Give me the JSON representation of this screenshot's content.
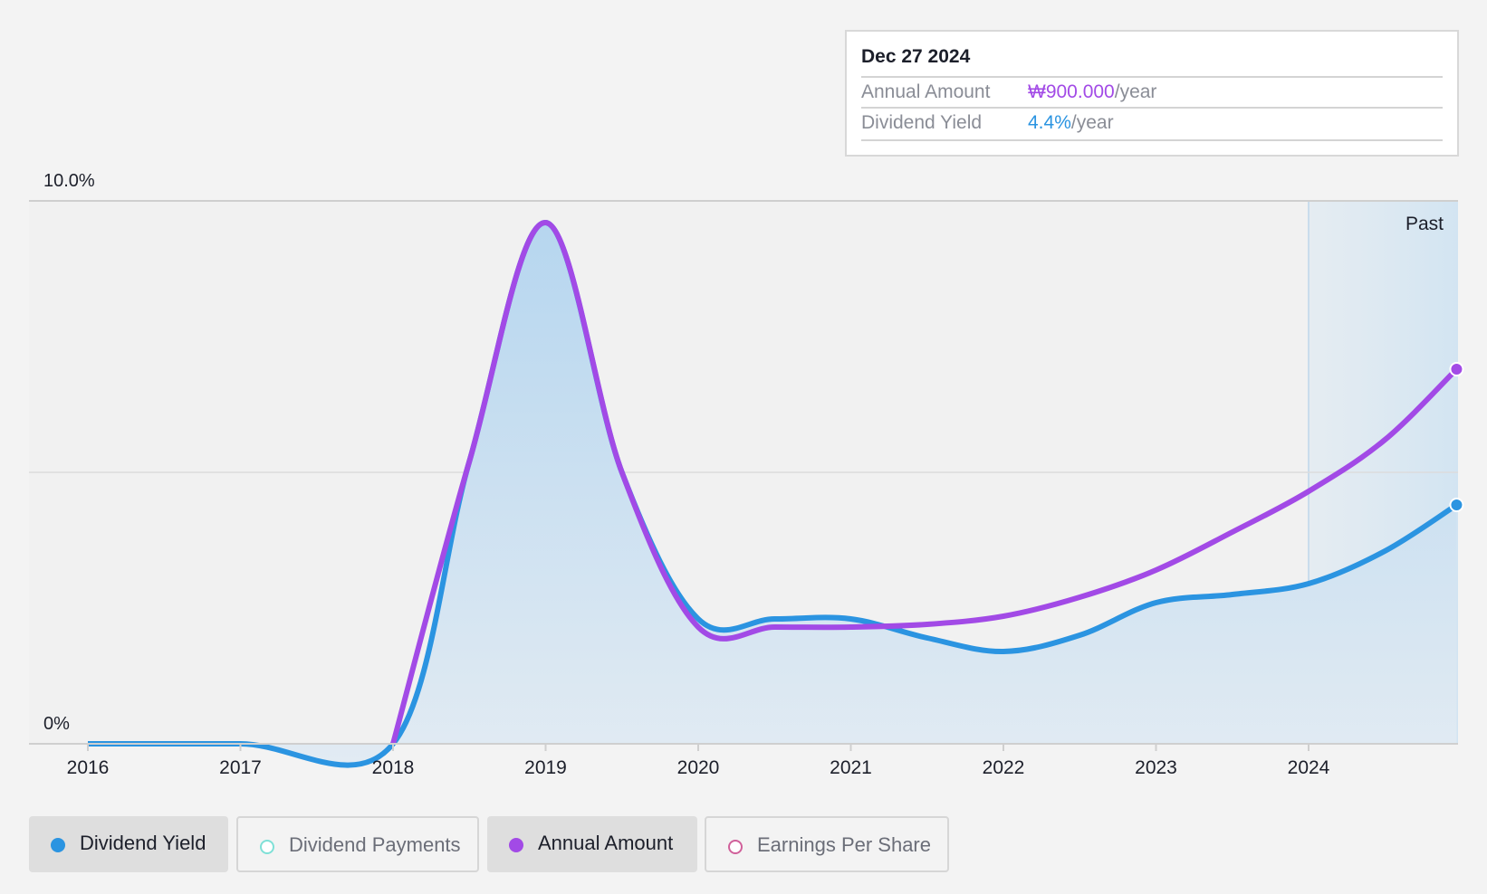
{
  "chart_data": {
    "type": "area",
    "x_ticks": [
      "2016",
      "2017",
      "2018",
      "2019",
      "2020",
      "2021",
      "2022",
      "2023",
      "2024"
    ],
    "y_ticks": [
      "0%",
      "10.0%"
    ],
    "ylim": [
      0,
      10
    ],
    "xlim": [
      2016,
      2024.97
    ],
    "past_start": 2024,
    "past_label": "Past",
    "grid": true,
    "series": [
      {
        "name": "Dividend Yield",
        "color": "#2b94e1",
        "filled": true,
        "points": [
          [
            2016,
            0
          ],
          [
            2017,
            0
          ],
          [
            2018,
            0
          ],
          [
            2018.5,
            5.2
          ],
          [
            2019,
            9.6
          ],
          [
            2019.5,
            5.0
          ],
          [
            2020,
            2.3
          ],
          [
            2020.5,
            2.3
          ],
          [
            2021,
            2.3
          ],
          [
            2021.5,
            1.95
          ],
          [
            2022,
            1.7
          ],
          [
            2022.5,
            2.0
          ],
          [
            2023,
            2.6
          ],
          [
            2023.5,
            2.75
          ],
          [
            2024,
            2.95
          ],
          [
            2024.5,
            3.55
          ],
          [
            2024.97,
            4.4
          ]
        ]
      },
      {
        "name": "Annual Amount",
        "color": "#a24ae6",
        "filled": false,
        "points": [
          [
            2018,
            0
          ],
          [
            2018.5,
            5.2
          ],
          [
            2019,
            9.6
          ],
          [
            2019.5,
            5.0
          ],
          [
            2020,
            2.15
          ],
          [
            2020.5,
            2.15
          ],
          [
            2021,
            2.15
          ],
          [
            2021.5,
            2.2
          ],
          [
            2022,
            2.35
          ],
          [
            2022.5,
            2.7
          ],
          [
            2023,
            3.2
          ],
          [
            2023.5,
            3.9
          ],
          [
            2024,
            4.65
          ],
          [
            2024.5,
            5.6
          ],
          [
            2024.97,
            6.9
          ]
        ]
      }
    ]
  },
  "tooltip": {
    "date": "Dec 27 2024",
    "annual_label": "Annual Amount",
    "annual_value": "₩900.000",
    "annual_unit": "/year",
    "yield_label": "Dividend Yield",
    "yield_value": "4.4%",
    "yield_unit": "/year"
  },
  "legend": [
    {
      "label": "Dividend Yield",
      "color": "#2b94e1",
      "active": true
    },
    {
      "label": "Dividend Payments",
      "color": "#7fe0d7",
      "active": false
    },
    {
      "label": "Annual Amount",
      "color": "#a24ae6",
      "active": true
    },
    {
      "label": "Earnings Per Share",
      "color": "#d0609a",
      "active": false
    }
  ]
}
